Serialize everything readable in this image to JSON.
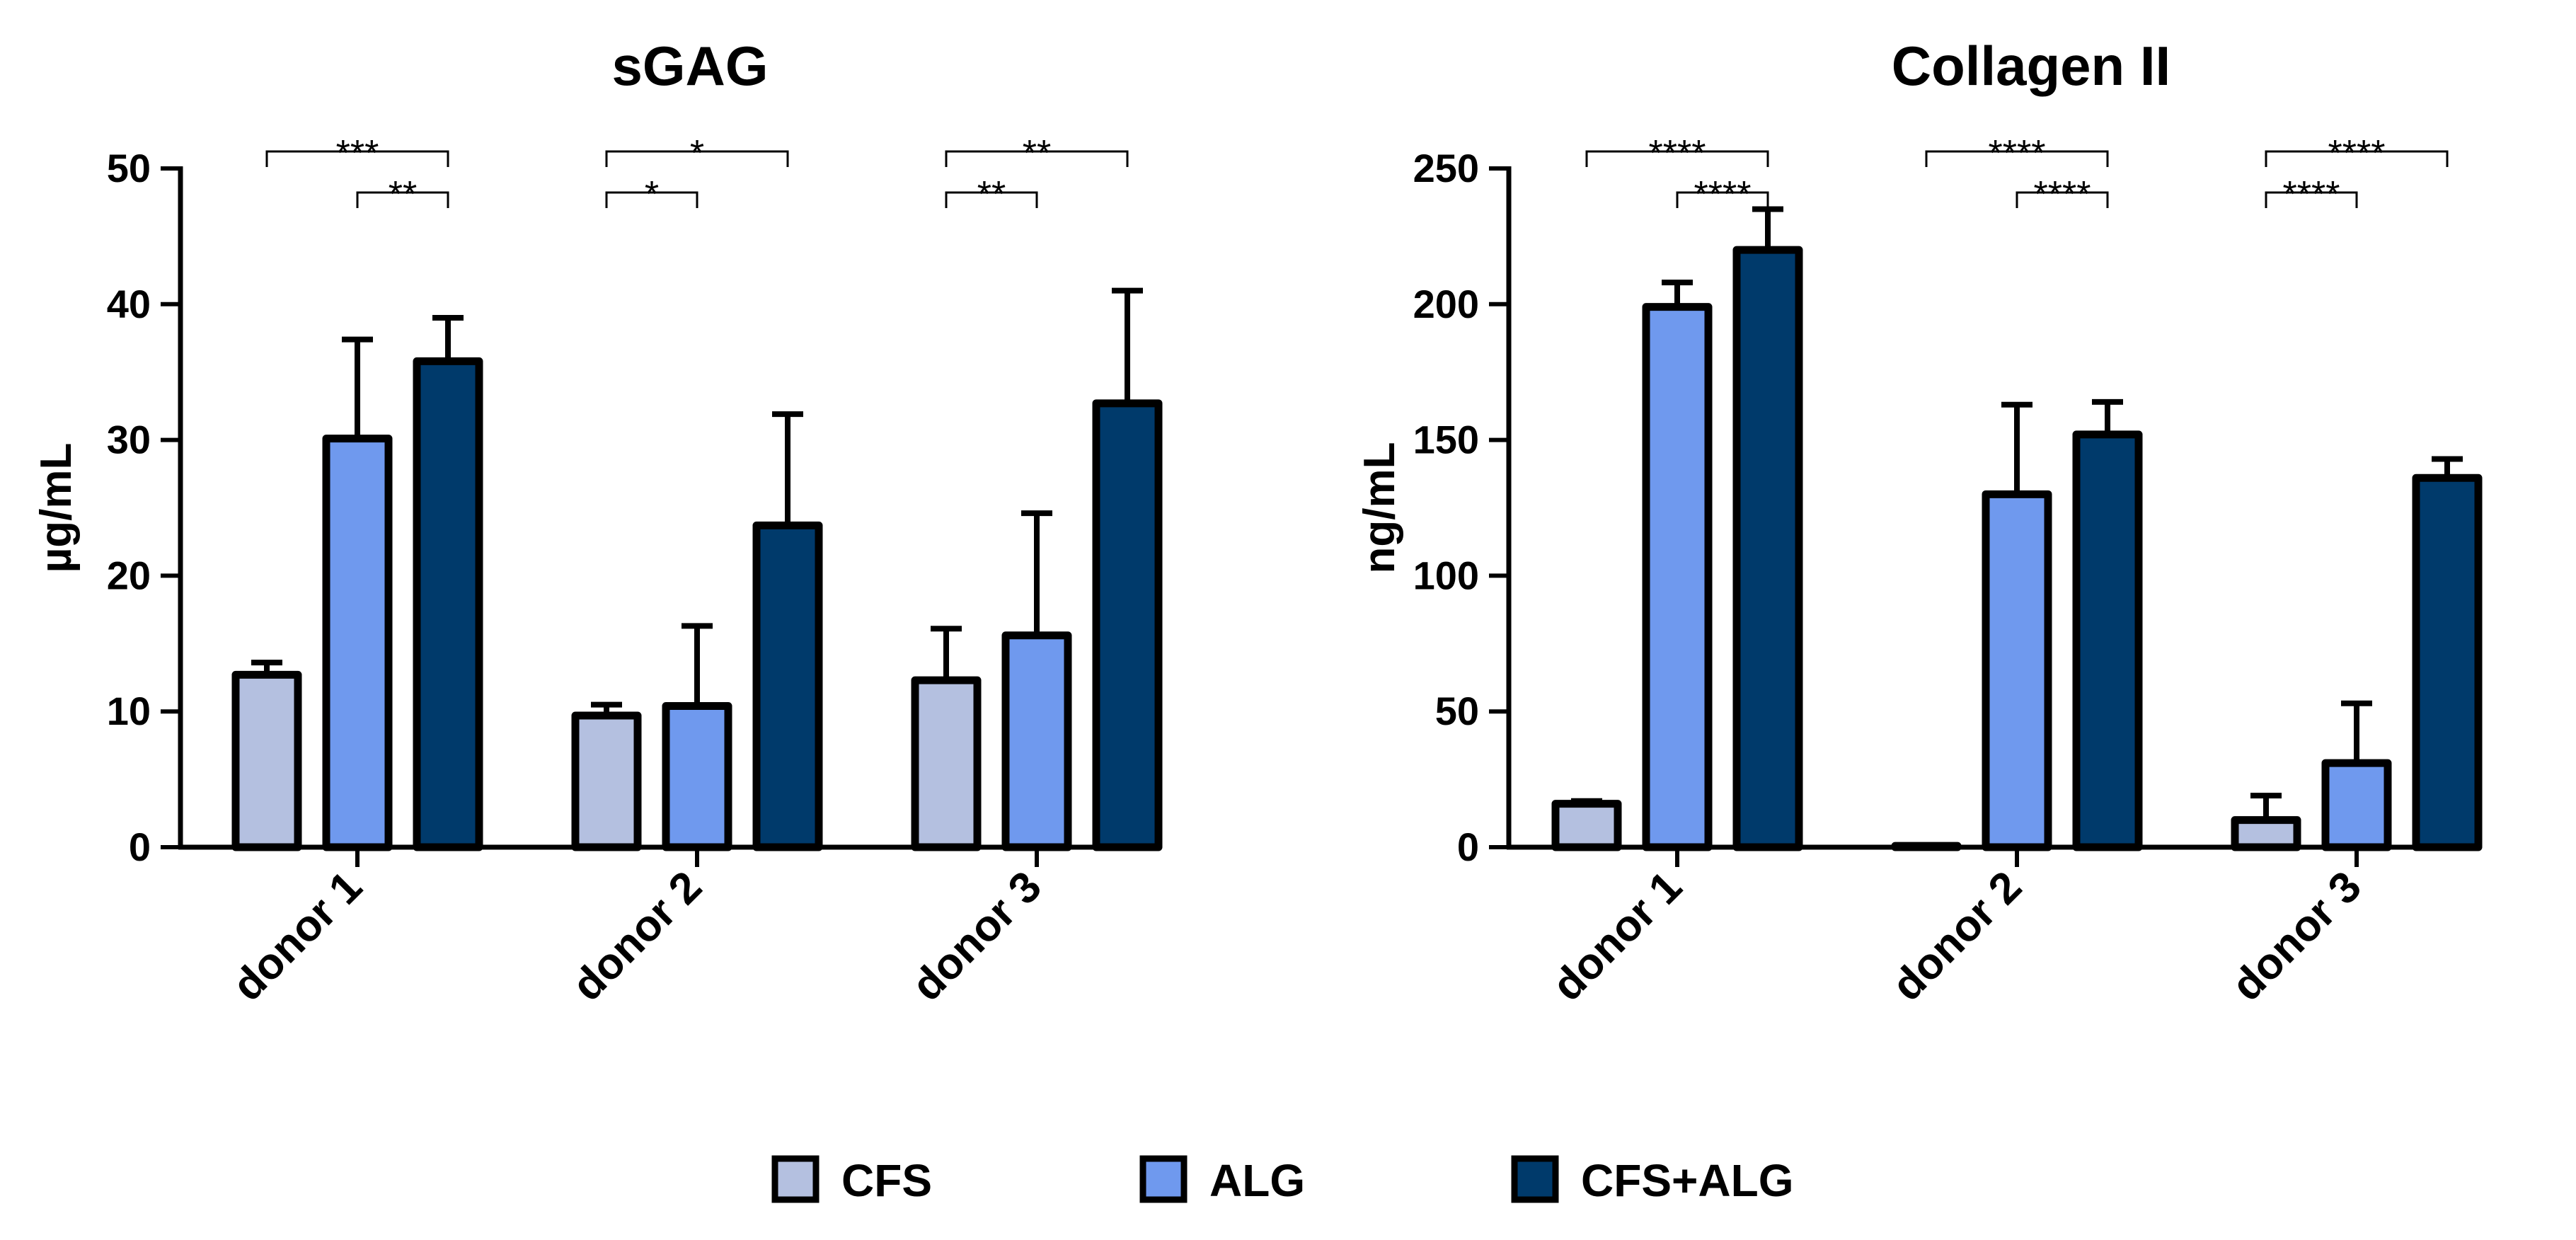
{
  "colors": {
    "CFS": "#b4c0e0",
    "ALG": "#6f99ee",
    "CFS+ALG": "#003a6b",
    "stroke": "#000000"
  },
  "legend": [
    {
      "name": "CFS",
      "color": "#b4c0e0"
    },
    {
      "name": "ALG",
      "color": "#6f99ee"
    },
    {
      "name": "CFS+ALG",
      "color": "#003a6b"
    }
  ],
  "chart_data": [
    {
      "type": "bar",
      "title": "sGAG",
      "xlabel": "",
      "ylabel": "µg/mL",
      "ylim": [
        0,
        50
      ],
      "yticks": [
        0,
        10,
        20,
        30,
        40,
        50
      ],
      "categories": [
        "donor 1",
        "donor 2",
        "donor 3"
      ],
      "series": [
        {
          "name": "CFS",
          "values": [
            12.7,
            9.7,
            12.3
          ],
          "errors": [
            0.9,
            0.8,
            3.8
          ]
        },
        {
          "name": "ALG",
          "values": [
            30.1,
            10.4,
            15.6
          ],
          "errors": [
            7.3,
            5.9,
            9.0
          ]
        },
        {
          "name": "CFS+ALG",
          "values": [
            35.8,
            23.7,
            32.7
          ],
          "errors": [
            3.2,
            8.2,
            8.3
          ]
        }
      ],
      "significance": [
        {
          "category": 0,
          "from": 0,
          "to": 2,
          "label": "***",
          "level": 0
        },
        {
          "category": 0,
          "from": 1,
          "to": 2,
          "label": "**",
          "level": 1
        },
        {
          "category": 1,
          "from": 0,
          "to": 2,
          "label": "*",
          "level": 0
        },
        {
          "category": 1,
          "from": 0,
          "to": 1,
          "label": "*",
          "level": 1
        },
        {
          "category": 2,
          "from": 0,
          "to": 2,
          "label": "**",
          "level": 0
        },
        {
          "category": 2,
          "from": 0,
          "to": 1,
          "label": "**",
          "level": 1
        }
      ]
    },
    {
      "type": "bar",
      "title": "Collagen II",
      "xlabel": "",
      "ylabel": "ng/mL",
      "ylim": [
        0,
        250
      ],
      "yticks": [
        0,
        50,
        100,
        150,
        200,
        250
      ],
      "categories": [
        "donor 1",
        "donor 2",
        "donor 3"
      ],
      "series": [
        {
          "name": "CFS",
          "values": [
            16,
            0.5,
            10
          ],
          "errors": [
            1,
            0,
            9
          ]
        },
        {
          "name": "ALG",
          "values": [
            199,
            130,
            31
          ],
          "errors": [
            9,
            33,
            22
          ]
        },
        {
          "name": "CFS+ALG",
          "values": [
            220,
            152,
            136
          ],
          "errors": [
            15,
            12,
            7
          ]
        }
      ],
      "significance": [
        {
          "category": 0,
          "from": 0,
          "to": 2,
          "label": "****",
          "level": 0
        },
        {
          "category": 0,
          "from": 1,
          "to": 2,
          "label": "****",
          "level": 1
        },
        {
          "category": 1,
          "from": 0,
          "to": 2,
          "label": "****",
          "level": 0
        },
        {
          "category": 1,
          "from": 1,
          "to": 2,
          "label": "****",
          "level": 1
        },
        {
          "category": 2,
          "from": 0,
          "to": 2,
          "label": "****",
          "level": 0
        },
        {
          "category": 2,
          "from": 0,
          "to": 1,
          "label": "****",
          "level": 1
        }
      ]
    }
  ]
}
